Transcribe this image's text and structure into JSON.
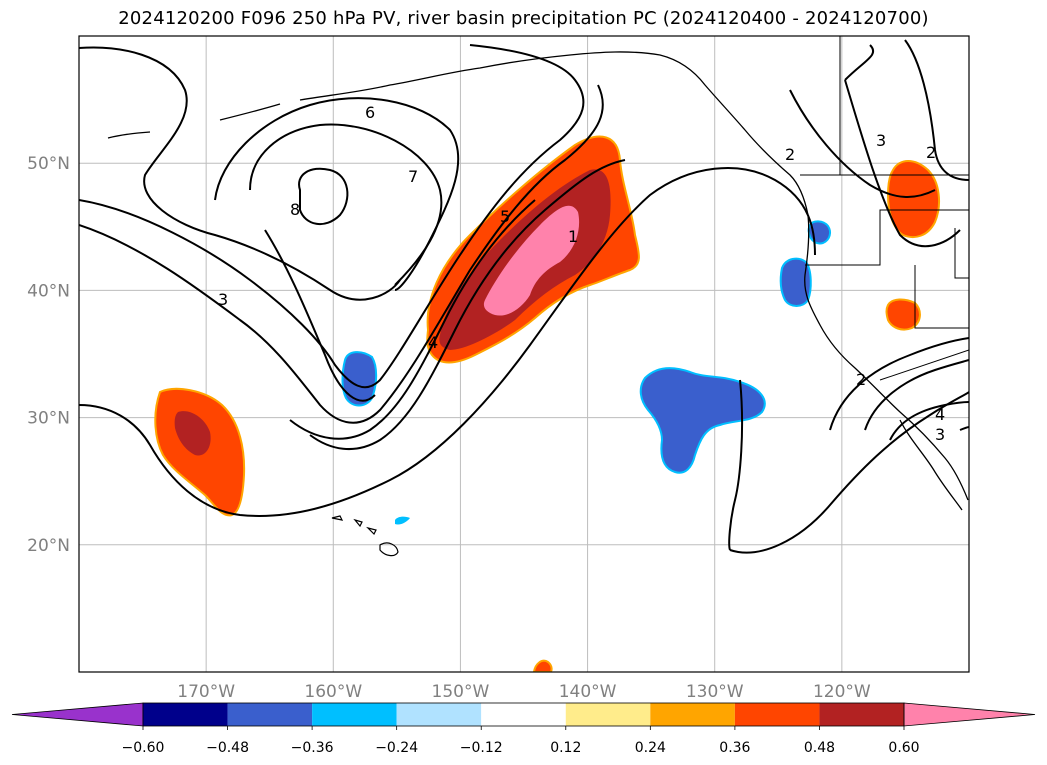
{
  "title": "2024120200 F096 250 hPa PV, river basin precipitation PC (2024120400 - 2024120700)",
  "map": {
    "lon_range": [
      -180,
      -110
    ],
    "lat_range": [
      10,
      60
    ],
    "gridlines": true,
    "lat_ticks": [
      {
        "lat": 50,
        "label": "50°N"
      },
      {
        "lat": 40,
        "label": "40°N"
      },
      {
        "lat": 30,
        "label": "30°N"
      },
      {
        "lat": 20,
        "label": "20°N"
      }
    ],
    "lon_ticks": [
      {
        "lon": -170,
        "label": "170°W"
      },
      {
        "lon": -160,
        "label": "160°W"
      },
      {
        "lon": -150,
        "label": "150°W"
      },
      {
        "lon": -140,
        "label": "140°W"
      },
      {
        "lon": -130,
        "label": "130°W"
      },
      {
        "lon": -120,
        "label": "120°W"
      }
    ],
    "contour_labels": [
      "6",
      "7",
      "8",
      "3",
      "5",
      "4",
      "1",
      "2",
      "2",
      "3",
      "2",
      "4",
      "3"
    ]
  },
  "colorbar": {
    "colors": [
      "#9932CC",
      "#00008B",
      "#3A5FCD",
      "#00BFFF",
      "#B0E2FF",
      "#FFFFFF",
      "#FFEC8B",
      "#FFA500",
      "#FF4500",
      "#B22222",
      "#FF82AB"
    ],
    "ticks": [
      "−0.60",
      "−0.48",
      "−0.36",
      "−0.24",
      "−0.12",
      "0.12",
      "0.24",
      "0.36",
      "0.48",
      "0.60"
    ]
  }
}
